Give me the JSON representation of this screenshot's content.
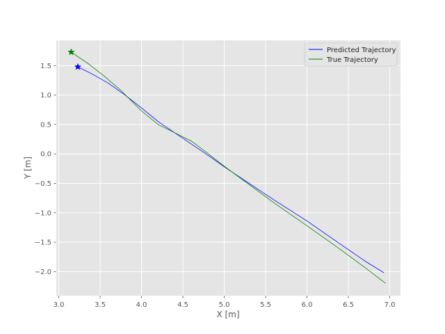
{
  "chart_data": {
    "type": "line",
    "title": "",
    "xlabel": "X [m]",
    "ylabel": "Y [m]",
    "xlim": [
      2.97,
      7.13
    ],
    "ylim": [
      -2.41,
      1.93
    ],
    "xticks": [
      3.0,
      3.5,
      4.0,
      4.5,
      5.0,
      5.5,
      6.0,
      6.5,
      7.0
    ],
    "xtick_labels": [
      "3.0",
      "3.5",
      "4.0",
      "4.5",
      "5.0",
      "5.5",
      "6.0",
      "6.5",
      "7.0"
    ],
    "yticks": [
      1.5,
      1.0,
      0.5,
      0.0,
      -0.5,
      -1.0,
      -1.5,
      -2.0
    ],
    "ytick_labels": [
      "1.5",
      "1.0",
      "0.5",
      "0.0",
      "−0.5",
      "−1.0",
      "−1.5",
      "−2.0"
    ],
    "grid": true,
    "legend_position": "top-right",
    "background": "#e5e5e5",
    "series": [
      {
        "name": "Predicted Trajectory",
        "color": "#0000ff",
        "x": [
          3.23,
          3.4,
          3.6,
          3.8,
          4.0,
          4.2,
          4.4,
          4.6,
          4.8,
          5.0,
          5.3,
          5.6,
          6.0,
          6.4,
          6.7,
          6.93
        ],
        "y": [
          1.48,
          1.36,
          1.2,
          1.0,
          0.78,
          0.55,
          0.36,
          0.17,
          -0.02,
          -0.22,
          -0.5,
          -0.78,
          -1.14,
          -1.53,
          -1.82,
          -2.02
        ]
      },
      {
        "name": "True Trajectory",
        "color": "#008000",
        "x": [
          3.15,
          3.35,
          3.55,
          3.75,
          4.0,
          4.2,
          4.4,
          4.6,
          4.8,
          5.0,
          5.3,
          5.6,
          6.0,
          6.4,
          6.7,
          6.95
        ],
        "y": [
          1.73,
          1.54,
          1.32,
          1.08,
          0.73,
          0.5,
          0.36,
          0.22,
          0.01,
          -0.21,
          -0.52,
          -0.83,
          -1.22,
          -1.62,
          -1.93,
          -2.2
        ]
      }
    ],
    "markers": [
      {
        "series": "Predicted Trajectory",
        "shape": "star",
        "x": 3.23,
        "y": 1.48,
        "color": "#0000ff"
      },
      {
        "series": "True Trajectory",
        "shape": "star",
        "x": 3.15,
        "y": 1.73,
        "color": "#008000"
      }
    ]
  }
}
